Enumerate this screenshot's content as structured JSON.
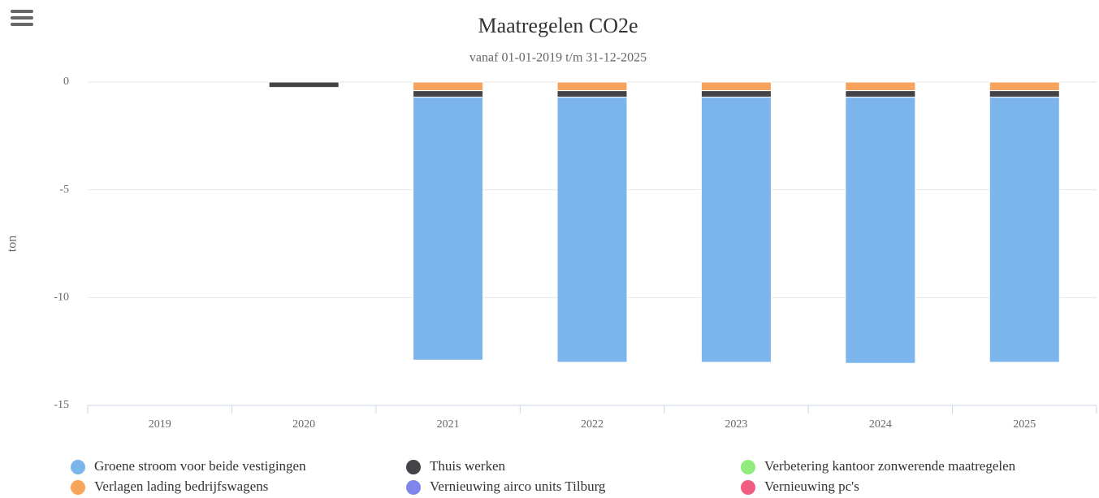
{
  "chart_data": {
    "type": "bar",
    "stacked": true,
    "title": "Maatregelen CO2e",
    "subtitle": "vanaf 01-01-2019 t/m 31-12-2025",
    "y_label": "ton",
    "categories": [
      "2019",
      "2020",
      "2021",
      "2022",
      "2023",
      "2024",
      "2025"
    ],
    "series": [
      {
        "name": "Groene stroom voor beide vestigingen",
        "color": "#7cb5ec",
        "values": [
          0,
          0,
          -12.2,
          -12.3,
          -12.3,
          -12.35,
          -12.3
        ]
      },
      {
        "name": "Thuis werken",
        "color": "#434348",
        "values": [
          0,
          -0.25,
          -0.3,
          -0.3,
          -0.3,
          -0.3,
          -0.3
        ]
      },
      {
        "name": "Verbetering kantoor zonwerende maatregelen",
        "color": "#90ed7d",
        "values": [
          0,
          0,
          0,
          0,
          0,
          0,
          0
        ]
      },
      {
        "name": "Verlagen lading bedrijfswagens",
        "color": "#f7a35c",
        "values": [
          0,
          0,
          -0.4,
          -0.4,
          -0.4,
          -0.4,
          -0.4
        ]
      },
      {
        "name": "Vernieuwing airco units Tilburg",
        "color": "#8085e9",
        "values": [
          0,
          0,
          0,
          0,
          0,
          0,
          0
        ]
      },
      {
        "name": "Vernieuwing pc's",
        "color": "#f15c80",
        "values": [
          0,
          0,
          0,
          0,
          0,
          0,
          0
        ]
      }
    ],
    "ylim": [
      -15,
      0
    ],
    "yticks": [
      0,
      -5,
      -10,
      -15
    ],
    "grid": true
  }
}
